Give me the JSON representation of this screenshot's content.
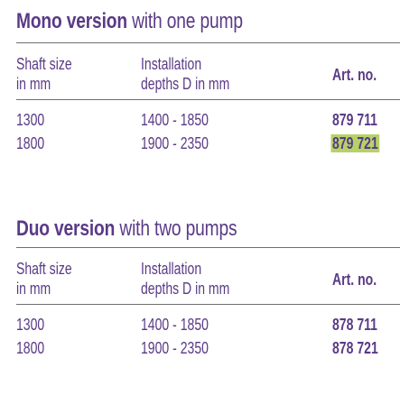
{
  "mono": {
    "title_strong": "Mono version",
    "title_rest": " with one pump",
    "col_shaft_line1": "Shaft size",
    "col_shaft_line2": "in mm",
    "col_install_line1": "Installation",
    "col_install_line2": "depths D in mm",
    "col_art": "Art. no.",
    "rows": [
      {
        "shaft": "1300",
        "depth": "1400 - 1850",
        "art": "879 711",
        "highlight": false
      },
      {
        "shaft": "1800",
        "depth": "1900 - 2350",
        "art": "879 721",
        "highlight": true
      }
    ]
  },
  "duo": {
    "title_strong": "Duo version",
    "title_rest": " with two pumps",
    "col_shaft_line1": "Shaft size",
    "col_shaft_line2": "in mm",
    "col_install_line1": "Installation",
    "col_install_line2": "depths D in mm",
    "col_art": "Art. no.",
    "rows": [
      {
        "shaft": "1300",
        "depth": "1400 - 1850",
        "art": "878 711",
        "highlight": false
      },
      {
        "shaft": "1800",
        "depth": "1900 - 2350",
        "art": "878 721",
        "highlight": false
      }
    ]
  },
  "colors": {
    "text": "#5a3a86",
    "rule": "#6f6f6f",
    "highlight": "#b5d267"
  }
}
